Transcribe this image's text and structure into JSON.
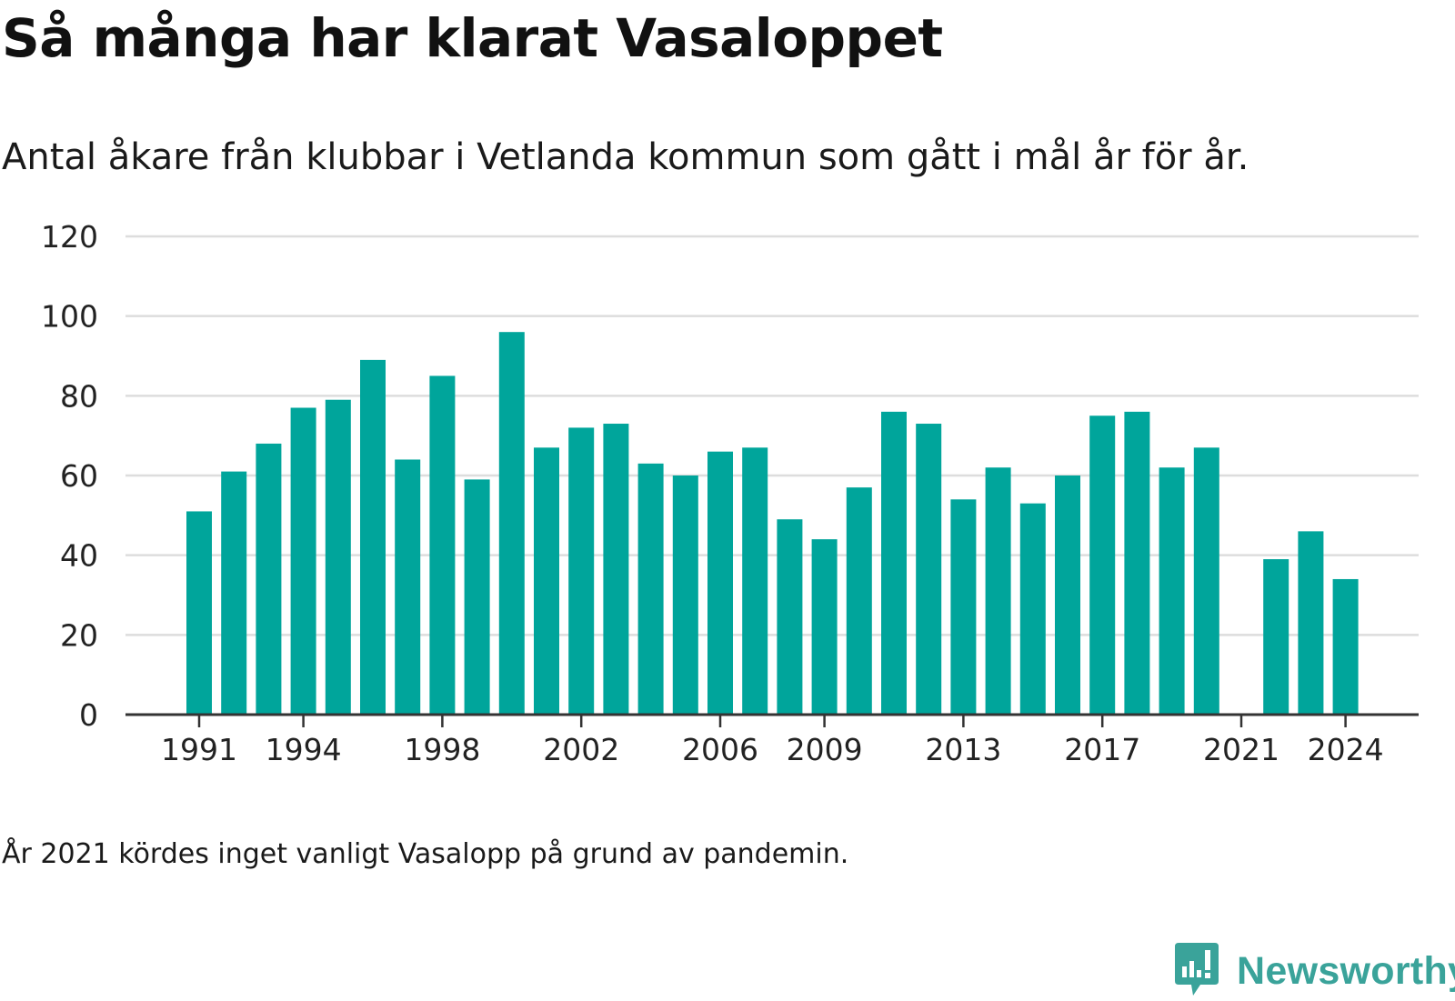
{
  "title": "Så många har klarat Vasaloppet",
  "subtitle": "Antal åkare från klubbar i Vetlanda kommun som gått i mål år för år.",
  "footnote": "År 2021 kördes inget vanligt Vasalopp på grund av pandemin.",
  "brand": {
    "name": "Newsworthy",
    "icon": "newsworthy-logo-icon",
    "color": "#3aa39a"
  },
  "colors": {
    "bar": "#00a59b",
    "grid": "#dddddd",
    "axis": "#333333"
  },
  "chart_data": {
    "type": "bar",
    "categories": [
      1991,
      1992,
      1993,
      1994,
      1995,
      1996,
      1997,
      1998,
      1999,
      2000,
      2001,
      2002,
      2003,
      2004,
      2005,
      2006,
      2007,
      2008,
      2009,
      2010,
      2011,
      2012,
      2013,
      2014,
      2015,
      2016,
      2017,
      2018,
      2019,
      2020,
      2021,
      2022,
      2023,
      2024
    ],
    "values": [
      51,
      61,
      68,
      77,
      79,
      89,
      64,
      85,
      59,
      96,
      67,
      72,
      73,
      63,
      60,
      66,
      67,
      49,
      44,
      57,
      76,
      73,
      54,
      62,
      53,
      60,
      75,
      76,
      62,
      67,
      null,
      39,
      46,
      34
    ],
    "x_tick_labels": [
      "1991",
      "1994",
      "1998",
      "2002",
      "2006",
      "2009",
      "2013",
      "2017",
      "2021",
      "2024"
    ],
    "y_ticks": [
      0,
      20,
      40,
      60,
      80,
      100,
      120
    ],
    "ylim": [
      0,
      120
    ],
    "grid": true,
    "xlabel": "",
    "ylabel": ""
  }
}
